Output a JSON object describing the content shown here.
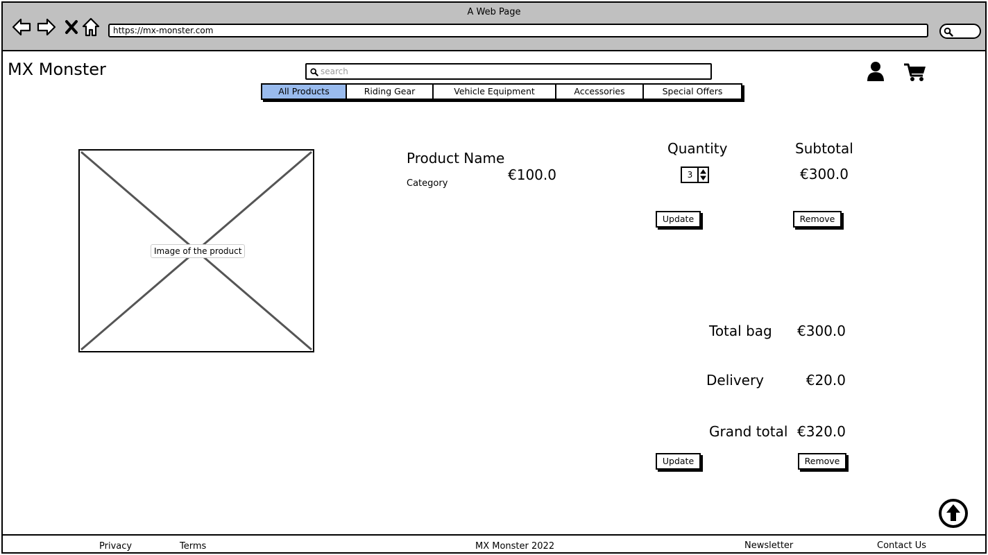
{
  "browser": {
    "title": "A Web Page",
    "url": "https://mx-monster.com"
  },
  "header": {
    "brand": "MX Monster",
    "search_placeholder": "search",
    "tabs": [
      {
        "label": "All Products",
        "active": true
      },
      {
        "label": "Riding Gear",
        "active": false
      },
      {
        "label": "Vehicle Equipment",
        "active": false
      },
      {
        "label": "Accessories",
        "active": false
      },
      {
        "label": "Special Offers",
        "active": false
      }
    ]
  },
  "product": {
    "image_label": "Image of the product",
    "name": "Product Name",
    "category": "Category",
    "unit_price": "€100.0",
    "quantity_heading": "Quantity",
    "quantity": "3",
    "subtotal_heading": "Subtotal",
    "subtotal": "€300.0",
    "update_label": "Update",
    "remove_label": "Remove"
  },
  "summary": {
    "total_bag_label": "Total bag",
    "total_bag_value": "€300.0",
    "delivery_label": "Delivery",
    "delivery_value": "€20.0",
    "grand_total_label": "Grand total",
    "grand_total_value": "€320.0",
    "update_label": "Update",
    "remove_label": "Remove"
  },
  "icons": {
    "back": "arrow-left-icon",
    "forward": "arrow-right-icon",
    "stop": "close-icon",
    "home": "home-icon",
    "browser_search": "search-icon",
    "user": "user-icon",
    "cart": "cart-icon",
    "scroll_top": "arrow-up-circle-icon"
  },
  "colors": {
    "active_tab": "#99bbee",
    "chrome": "#c0c0c0"
  },
  "footer": {
    "privacy": "Privacy",
    "terms": "Terms",
    "copyright": "MX Monster 2022",
    "newsletter": "Newsletter",
    "contact": "Contact Us"
  }
}
